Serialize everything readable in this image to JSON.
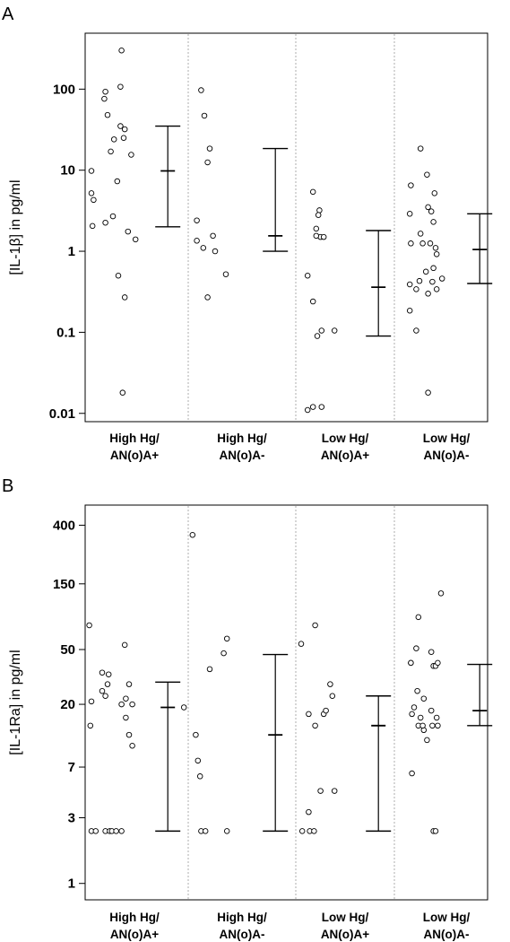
{
  "chart_data": [
    {
      "panel_label": "A",
      "type": "scatter",
      "scale": "log",
      "ylabel": "[IL-1β] in pg/ml",
      "yticks": [
        0.01,
        0.1,
        1,
        10,
        100
      ],
      "ytick_labels": [
        "0.01",
        "0.1",
        "1",
        "10",
        "100"
      ],
      "ylim": [
        0.0079,
        490
      ],
      "categories": [
        {
          "line1": "High Hg/",
          "line2": "AN(o)A+"
        },
        {
          "line1": "High Hg/",
          "line2": "AN(o)A-"
        },
        {
          "line1": "Low Hg/",
          "line2": "AN(o)A+"
        },
        {
          "line1": "Low Hg/",
          "line2": "AN(o)A-"
        }
      ],
      "series": [
        {
          "points": [
            {
              "x": -0.4,
              "y": 9.8
            },
            {
              "x": -0.4,
              "y": 5.2
            },
            {
              "x": -0.38,
              "y": 4.3
            },
            {
              "x": -0.39,
              "y": 2.05
            },
            {
              "x": -0.27,
              "y": 93
            },
            {
              "x": -0.28,
              "y": 76
            },
            {
              "x": -0.25,
              "y": 48
            },
            {
              "x": -0.22,
              "y": 17
            },
            {
              "x": -0.19,
              "y": 24
            },
            {
              "x": -0.27,
              "y": 2.25
            },
            {
              "x": -0.2,
              "y": 2.7
            },
            {
              "x": -0.16,
              "y": 7.3
            },
            {
              "x": -0.13,
              "y": 35
            },
            {
              "x": -0.09,
              "y": 32
            },
            {
              "x": -0.1,
              "y": 25
            },
            {
              "x": -0.03,
              "y": 15.5
            },
            {
              "x": -0.12,
              "y": 300
            },
            {
              "x": -0.13,
              "y": 107
            },
            {
              "x": -0.15,
              "y": 0.5
            },
            {
              "x": -0.09,
              "y": 0.27
            },
            {
              "x": -0.06,
              "y": 1.75
            },
            {
              "x": 0.01,
              "y": 1.4
            },
            {
              "x": -0.11,
              "y": 0.018
            }
          ]
        },
        {
          "points": [
            {
              "x": 0.58,
              "y": 2.4
            },
            {
              "x": 0.58,
              "y": 1.35
            },
            {
              "x": 0.62,
              "y": 97
            },
            {
              "x": 0.65,
              "y": 47
            },
            {
              "x": 0.7,
              "y": 18.5
            },
            {
              "x": 0.68,
              "y": 12.5
            },
            {
              "x": 0.64,
              "y": 1.1
            },
            {
              "x": 0.73,
              "y": 1.55
            },
            {
              "x": 0.75,
              "y": 1.0
            },
            {
              "x": 0.68,
              "y": 0.27
            },
            {
              "x": 0.85,
              "y": 0.52
            }
          ]
        },
        {
          "points": [
            {
              "x": 1.61,
              "y": 0.5
            },
            {
              "x": 1.61,
              "y": 0.011
            },
            {
              "x": 1.66,
              "y": 0.012
            },
            {
              "x": 1.74,
              "y": 0.012
            },
            {
              "x": 1.66,
              "y": 0.24
            },
            {
              "x": 1.66,
              "y": 5.4
            },
            {
              "x": 1.72,
              "y": 3.2
            },
            {
              "x": 1.71,
              "y": 2.8
            },
            {
              "x": 1.69,
              "y": 1.9
            },
            {
              "x": 1.73,
              "y": 1.5
            },
            {
              "x": 1.69,
              "y": 1.55
            },
            {
              "x": 1.76,
              "y": 1.5
            },
            {
              "x": 1.7,
              "y": 0.09
            },
            {
              "x": 1.74,
              "y": 0.105
            },
            {
              "x": 1.86,
              "y": 0.105
            }
          ]
        },
        {
          "points": [
            {
              "x": 2.57,
              "y": 6.5
            },
            {
              "x": 2.56,
              "y": 2.9
            },
            {
              "x": 2.57,
              "y": 1.25
            },
            {
              "x": 2.56,
              "y": 0.39
            },
            {
              "x": 2.56,
              "y": 0.185
            },
            {
              "x": 2.62,
              "y": 0.105
            },
            {
              "x": 2.62,
              "y": 0.34
            },
            {
              "x": 2.66,
              "y": 1.65
            },
            {
              "x": 2.68,
              "y": 1.25
            },
            {
              "x": 2.65,
              "y": 0.43
            },
            {
              "x": 2.71,
              "y": 0.56
            },
            {
              "x": 2.73,
              "y": 0.3
            },
            {
              "x": 2.73,
              "y": 0.018
            },
            {
              "x": 2.66,
              "y": 18.5
            },
            {
              "x": 2.72,
              "y": 8.8
            },
            {
              "x": 2.73,
              "y": 3.5
            },
            {
              "x": 2.76,
              "y": 3.1
            },
            {
              "x": 2.79,
              "y": 5.2
            },
            {
              "x": 2.78,
              "y": 2.3
            },
            {
              "x": 2.75,
              "y": 1.25
            },
            {
              "x": 2.8,
              "y": 1.1
            },
            {
              "x": 2.81,
              "y": 0.92
            },
            {
              "x": 2.78,
              "y": 0.62
            },
            {
              "x": 2.81,
              "y": 0.34
            },
            {
              "x": 2.86,
              "y": 0.46
            },
            {
              "x": 2.77,
              "y": 0.42
            }
          ]
        }
      ],
      "ranges": [
        {
          "category": 0,
          "low": 2.0,
          "mid": 9.8,
          "high": 35
        },
        {
          "category": 1,
          "low": 1.0,
          "mid": 1.55,
          "high": 18.5
        },
        {
          "category": 2,
          "low": 0.09,
          "mid": 0.36,
          "high": 1.8
        },
        {
          "category": 3,
          "low": 0.4,
          "mid": 1.05,
          "high": 2.9
        }
      ],
      "grid": false,
      "legend": "none"
    },
    {
      "panel_label": "B",
      "type": "scatter",
      "scale": "log",
      "ylabel": "[IL-1Ra] in pg/ml",
      "yticks": [
        1,
        3,
        7,
        20,
        50,
        150,
        400
      ],
      "ytick_labels": [
        "1",
        "3",
        "7",
        "20",
        "50",
        "150",
        "400"
      ],
      "ylim": [
        0.76,
        560
      ],
      "categories": [
        {
          "line1": "High Hg/",
          "line2": "AN(o)A+"
        },
        {
          "line1": "High Hg/",
          "line2": "AN(o)A-"
        },
        {
          "line1": "Low Hg/",
          "line2": "AN(o)A+"
        },
        {
          "line1": "Low Hg/",
          "line2": "AN(o)A-"
        }
      ],
      "series": [
        {
          "points": [
            {
              "x": -0.42,
              "y": 75
            },
            {
              "x": -0.4,
              "y": 21
            },
            {
              "x": -0.41,
              "y": 14
            },
            {
              "x": -0.4,
              "y": 2.4
            },
            {
              "x": -0.36,
              "y": 2.4
            },
            {
              "x": -0.3,
              "y": 34
            },
            {
              "x": -0.3,
              "y": 25
            },
            {
              "x": -0.27,
              "y": 23
            },
            {
              "x": -0.25,
              "y": 28
            },
            {
              "x": -0.24,
              "y": 33
            },
            {
              "x": -0.27,
              "y": 2.4
            },
            {
              "x": -0.23,
              "y": 2.4
            },
            {
              "x": -0.21,
              "y": 2.4
            },
            {
              "x": -0.17,
              "y": 2.4
            },
            {
              "x": -0.12,
              "y": 2.4
            },
            {
              "x": -0.12,
              "y": 20
            },
            {
              "x": -0.09,
              "y": 54
            },
            {
              "x": -0.08,
              "y": 22
            },
            {
              "x": -0.08,
              "y": 16
            },
            {
              "x": -0.05,
              "y": 28
            },
            {
              "x": -0.05,
              "y": 12
            },
            {
              "x": -0.02,
              "y": 20
            },
            {
              "x": -0.02,
              "y": 10
            }
          ]
        },
        {
          "points": [
            {
              "x": 0.46,
              "y": 19
            },
            {
              "x": 0.54,
              "y": 340
            },
            {
              "x": 0.57,
              "y": 12
            },
            {
              "x": 0.59,
              "y": 7.8
            },
            {
              "x": 0.61,
              "y": 6.0
            },
            {
              "x": 0.62,
              "y": 2.4
            },
            {
              "x": 0.66,
              "y": 2.4
            },
            {
              "x": 0.7,
              "y": 36
            },
            {
              "x": 0.83,
              "y": 47
            },
            {
              "x": 0.86,
              "y": 60
            },
            {
              "x": 0.86,
              "y": 2.4
            }
          ]
        },
        {
          "points": [
            {
              "x": 1.55,
              "y": 55
            },
            {
              "x": 1.56,
              "y": 2.4
            },
            {
              "x": 1.62,
              "y": 3.3
            },
            {
              "x": 1.62,
              "y": 17
            },
            {
              "x": 1.63,
              "y": 2.4
            },
            {
              "x": 1.67,
              "y": 2.4
            },
            {
              "x": 1.68,
              "y": 75
            },
            {
              "x": 1.68,
              "y": 14
            },
            {
              "x": 1.73,
              "y": 4.7
            },
            {
              "x": 1.76,
              "y": 17
            },
            {
              "x": 1.78,
              "y": 18
            },
            {
              "x": 1.82,
              "y": 28
            },
            {
              "x": 1.84,
              "y": 23
            },
            {
              "x": 1.86,
              "y": 4.7
            }
          ]
        },
        {
          "points": [
            {
              "x": 2.57,
              "y": 40
            },
            {
              "x": 2.57,
              "y": 40
            },
            {
              "x": 2.58,
              "y": 17
            },
            {
              "x": 2.6,
              "y": 19
            },
            {
              "x": 2.58,
              "y": 6.3
            },
            {
              "x": 2.62,
              "y": 51
            },
            {
              "x": 2.63,
              "y": 25
            },
            {
              "x": 2.64,
              "y": 86
            },
            {
              "x": 2.64,
              "y": 14
            },
            {
              "x": 2.66,
              "y": 16
            },
            {
              "x": 2.69,
              "y": 22
            },
            {
              "x": 2.69,
              "y": 13
            },
            {
              "x": 2.68,
              "y": 14
            },
            {
              "x": 2.72,
              "y": 11
            },
            {
              "x": 2.76,
              "y": 48
            },
            {
              "x": 2.78,
              "y": 38
            },
            {
              "x": 2.8,
              "y": 38
            },
            {
              "x": 2.82,
              "y": 40
            },
            {
              "x": 2.76,
              "y": 18
            },
            {
              "x": 2.77,
              "y": 14
            },
            {
              "x": 2.81,
              "y": 16
            },
            {
              "x": 2.82,
              "y": 14
            },
            {
              "x": 2.78,
              "y": 2.4
            },
            {
              "x": 2.8,
              "y": 2.4
            },
            {
              "x": 2.85,
              "y": 128
            }
          ]
        }
      ],
      "ranges": [
        {
          "category": 0,
          "low": 2.4,
          "mid": 19,
          "high": 29
        },
        {
          "category": 1,
          "low": 2.4,
          "mid": 12,
          "high": 46
        },
        {
          "category": 2,
          "low": 2.4,
          "mid": 14,
          "high": 23
        },
        {
          "category": 3,
          "low": 14,
          "mid": 18,
          "high": 39
        }
      ],
      "grid": false,
      "legend": "none"
    }
  ]
}
